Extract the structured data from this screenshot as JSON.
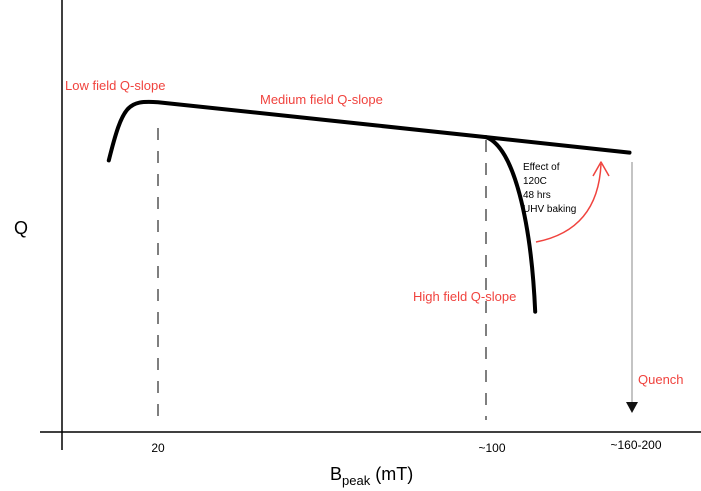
{
  "chart_data": {
    "type": "line",
    "xlabel_main": "B",
    "xlabel_sub": "peak",
    "xlabel_unit": " (mT)",
    "ylabel": "Q",
    "x_ticks": [
      "20",
      "~100",
      "~160-200"
    ],
    "series": [
      {
        "name": "",
        "x": [
          8,
          20,
          100,
          135
        ],
        "y": [
          0.7,
          0.85,
          0.76,
          0.72
        ]
      },
      {
        "name": "",
        "x": [
          100,
          112
        ],
        "y": [
          0.76,
          0.31
        ]
      }
    ],
    "annotations": {
      "low_field": "Low field Q-slope",
      "medium_field": "Medium field Q-slope",
      "high_field": "High field Q-slope",
      "effect_lines": [
        "Effect of",
        "120C",
        "48 hrs",
        "UHV baking"
      ],
      "quench": "Quench"
    },
    "colors": {
      "annotation": "#f0433e",
      "curve": "#000000",
      "axis": "#000000",
      "guide": "#555555"
    }
  }
}
